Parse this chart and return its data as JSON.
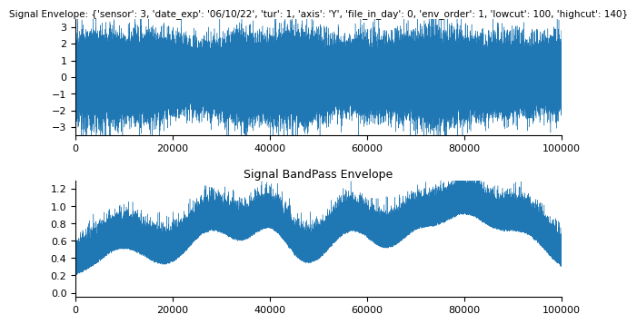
{
  "title1": "Signal Envelope: {'sensor': 3, 'date_exp': '06/10/22', 'tur': 1, 'axis': 'Y', 'file_in_day': 0, 'env_order': 1, 'lowcut': 100, 'highcut': 140}",
  "title2": "Signal BandPass Envelope",
  "xlim": [
    0,
    100000
  ],
  "ylim1": [
    -3.5,
    3.5
  ],
  "ylim2": [
    -0.05,
    1.3
  ],
  "xticks": [
    0,
    20000,
    40000,
    60000,
    80000,
    100000
  ],
  "yticks1": [
    -3,
    -2,
    -1,
    0,
    1,
    2,
    3
  ],
  "yticks2": [
    0.0,
    0.2,
    0.4,
    0.6,
    0.8,
    1.0,
    1.2
  ],
  "color": "#1f77b4",
  "bg_color": "#ffffff",
  "title1_fontsize": 7.5,
  "title2_fontsize": 9,
  "tick_fontsize": 8,
  "seed": 12345,
  "n_points": 100000
}
